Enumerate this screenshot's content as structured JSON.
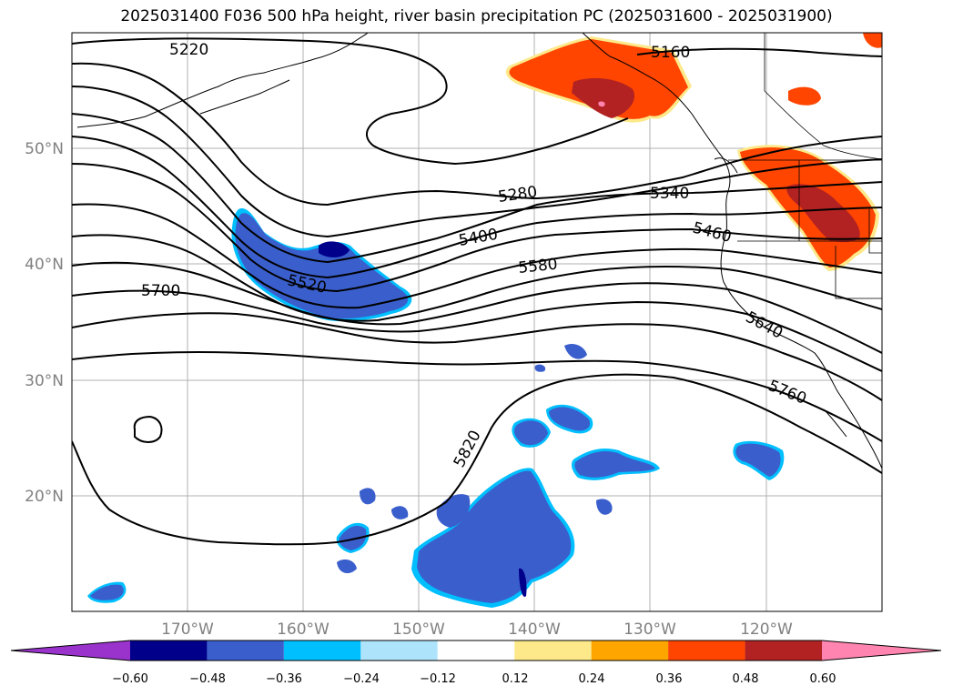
{
  "title": "2025031400 F036 500 hPa height, river basin precipitation PC (2025031600 - 2025031900)",
  "map": {
    "lat_labels": [
      "50°N",
      "40°N",
      "30°N",
      "20°N"
    ],
    "lon_labels": [
      "170°W",
      "160°W",
      "150°W",
      "140°W",
      "130°W",
      "120°W"
    ],
    "contour_labels": [
      "5220",
      "5160",
      "5280",
      "5340",
      "5400",
      "5460",
      "5520",
      "5580",
      "5640",
      "5700",
      "5760",
      "5820"
    ]
  },
  "colorbar": {
    "tick_labels": [
      "−0.60",
      "−0.48",
      "−0.36",
      "−0.24",
      "−0.12",
      "0.12",
      "0.24",
      "0.36",
      "0.48",
      "0.60"
    ],
    "colors": [
      "#9933cc",
      "#00008b",
      "#3a5fcd",
      "#00bfff",
      "#aee4fb",
      "#ffffff",
      "#fde98a",
      "#ffa500",
      "#ff4500",
      "#b22222",
      "#ff85b0"
    ]
  }
}
